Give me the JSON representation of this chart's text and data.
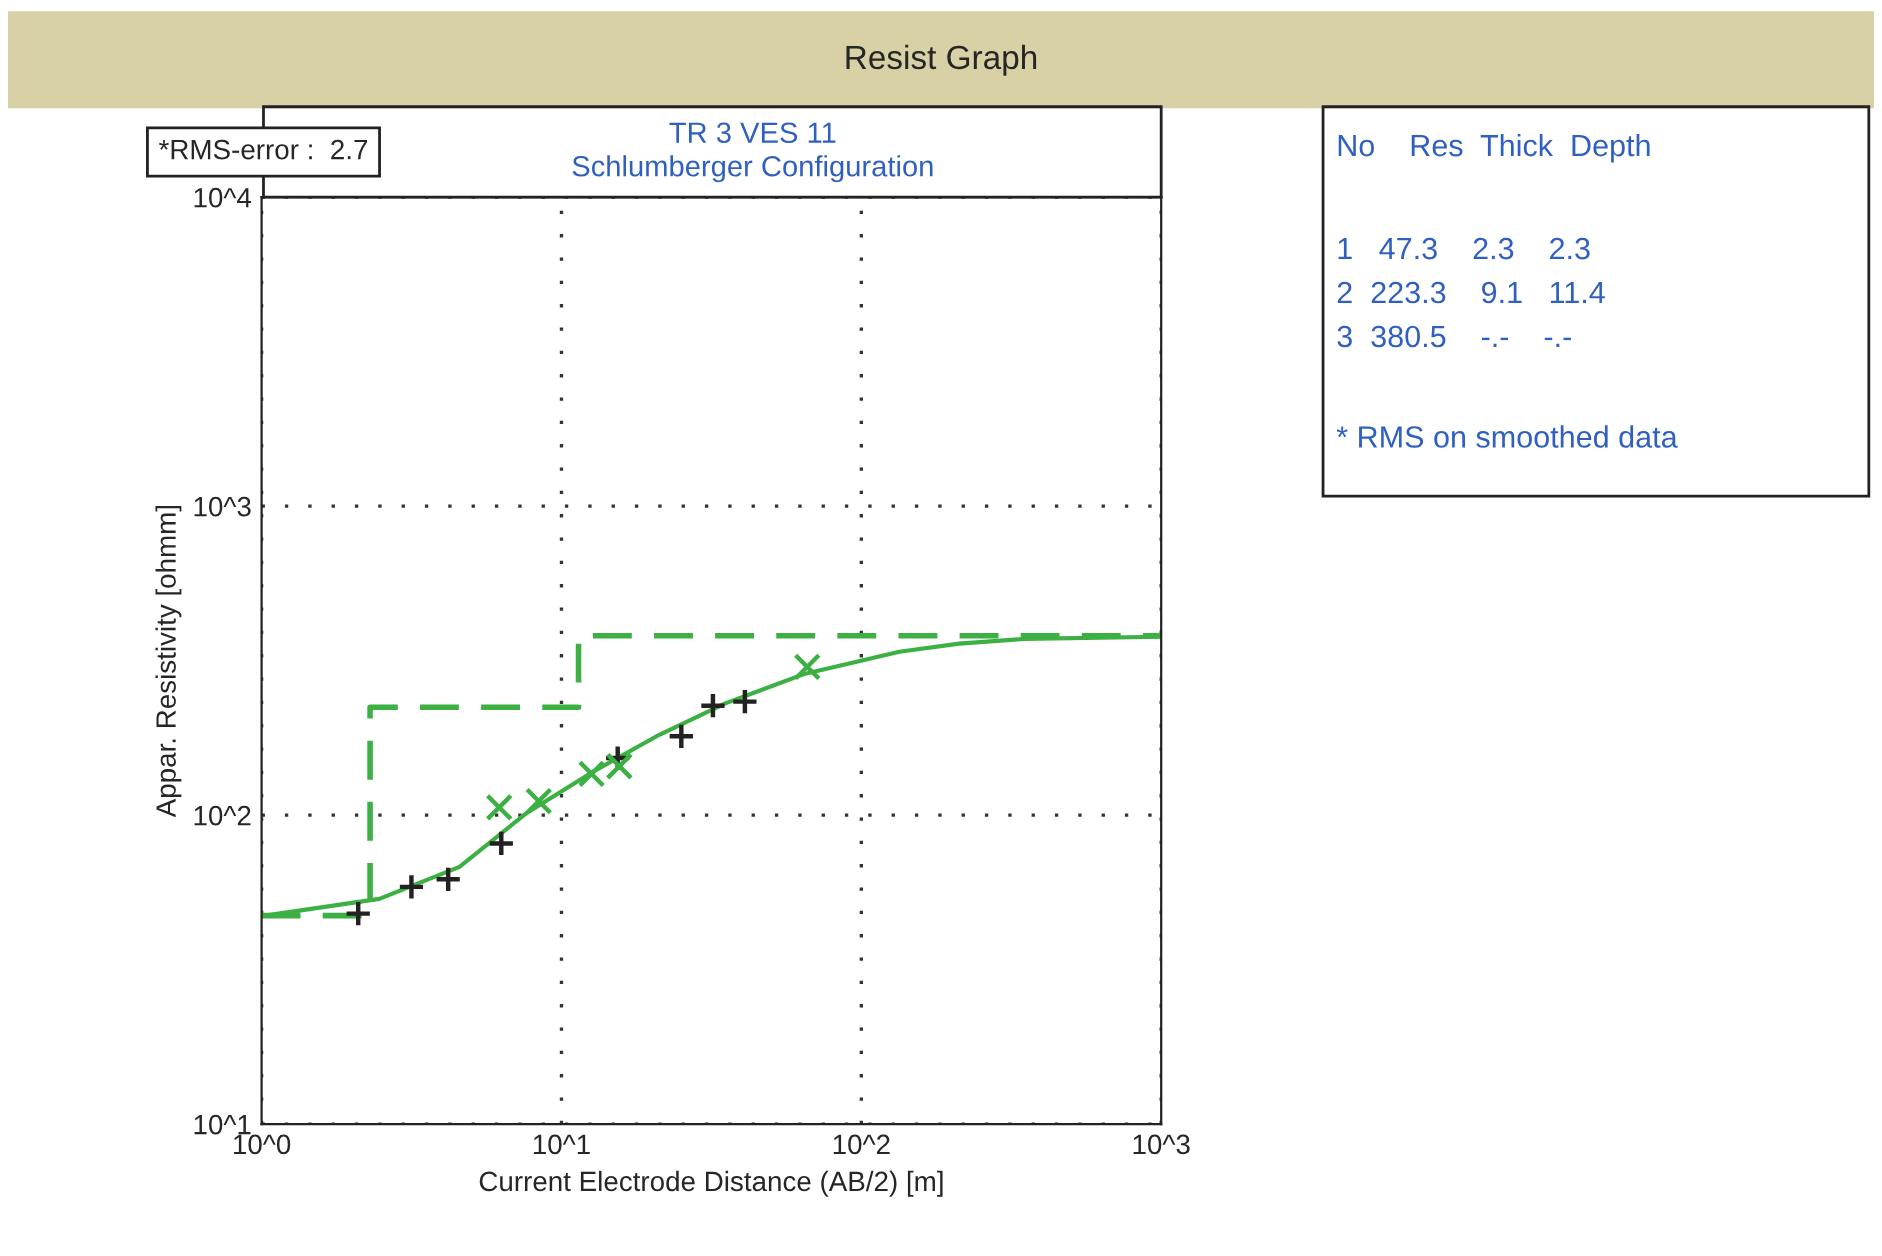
{
  "chart_data": {
    "type": "line",
    "title": "Resist Graph",
    "subtitle": "TR 3 VES 11\nSchlumberger Configuration",
    "xlabel": "Current Electrode Distance (AB/2) [m]",
    "ylabel": "Appar. Resistivity [ohmm]",
    "log": "xy",
    "xlim": [
      1,
      1000
    ],
    "ylim": [
      10,
      10000
    ],
    "xticks": [
      {
        "value": 1,
        "label": "10^0"
      },
      {
        "value": 10,
        "label": "10^1"
      },
      {
        "value": 100,
        "label": "10^2"
      },
      {
        "value": 1000,
        "label": "10^3"
      }
    ],
    "yticks": [
      {
        "value": 10,
        "label": "10^1"
      },
      {
        "value": 100,
        "label": "10^2"
      },
      {
        "value": 1000,
        "label": "10^3"
      },
      {
        "value": 10000,
        "label": "10^4"
      }
    ],
    "grid": true,
    "series": [
      {
        "type": "step",
        "color": "#3cb043",
        "line_style": "dashed",
        "x": [
          1,
          2.3,
          11.4,
          1000
        ],
        "values": [
          47.3,
          223.3,
          380.5,
          380.5
        ]
      },
      {
        "color": "#3cb043",
        "line_style": "solid",
        "x": [
          1,
          2.47,
          4.57,
          7.59,
          12.7,
          21.2,
          35.2,
          65,
          134,
          212,
          352,
          1000
        ],
        "values": [
          47.1,
          53.6,
          68,
          101,
          138,
          182,
          230,
          287,
          338,
          359,
          372,
          378
        ]
      },
      {
        "type": "scatter",
        "color": "#222222",
        "marker": "plus",
        "x": [
          2.1,
          3.16,
          4.19,
          6.3,
          15.4,
          25.1,
          32,
          40.9
        ],
        "values": [
          48,
          58.6,
          62,
          81,
          153,
          180,
          226,
          233
        ]
      },
      {
        "type": "scatter",
        "color": "#3cb043",
        "marker": "cross",
        "x": [
          6.2,
          8.4,
          12.6,
          15.6,
          66
        ],
        "values": [
          106,
          111,
          136,
          144,
          302
        ]
      }
    ],
    "annotations": [
      "*RMS-error :  2.7",
      "No    Res  Thick  Depth",
      "1   47.3    2.3    2.3",
      "2  223.3    9.1   11.4",
      "3  380.5    -.-    -.-",
      "* RMS on smoothed data"
    ]
  }
}
